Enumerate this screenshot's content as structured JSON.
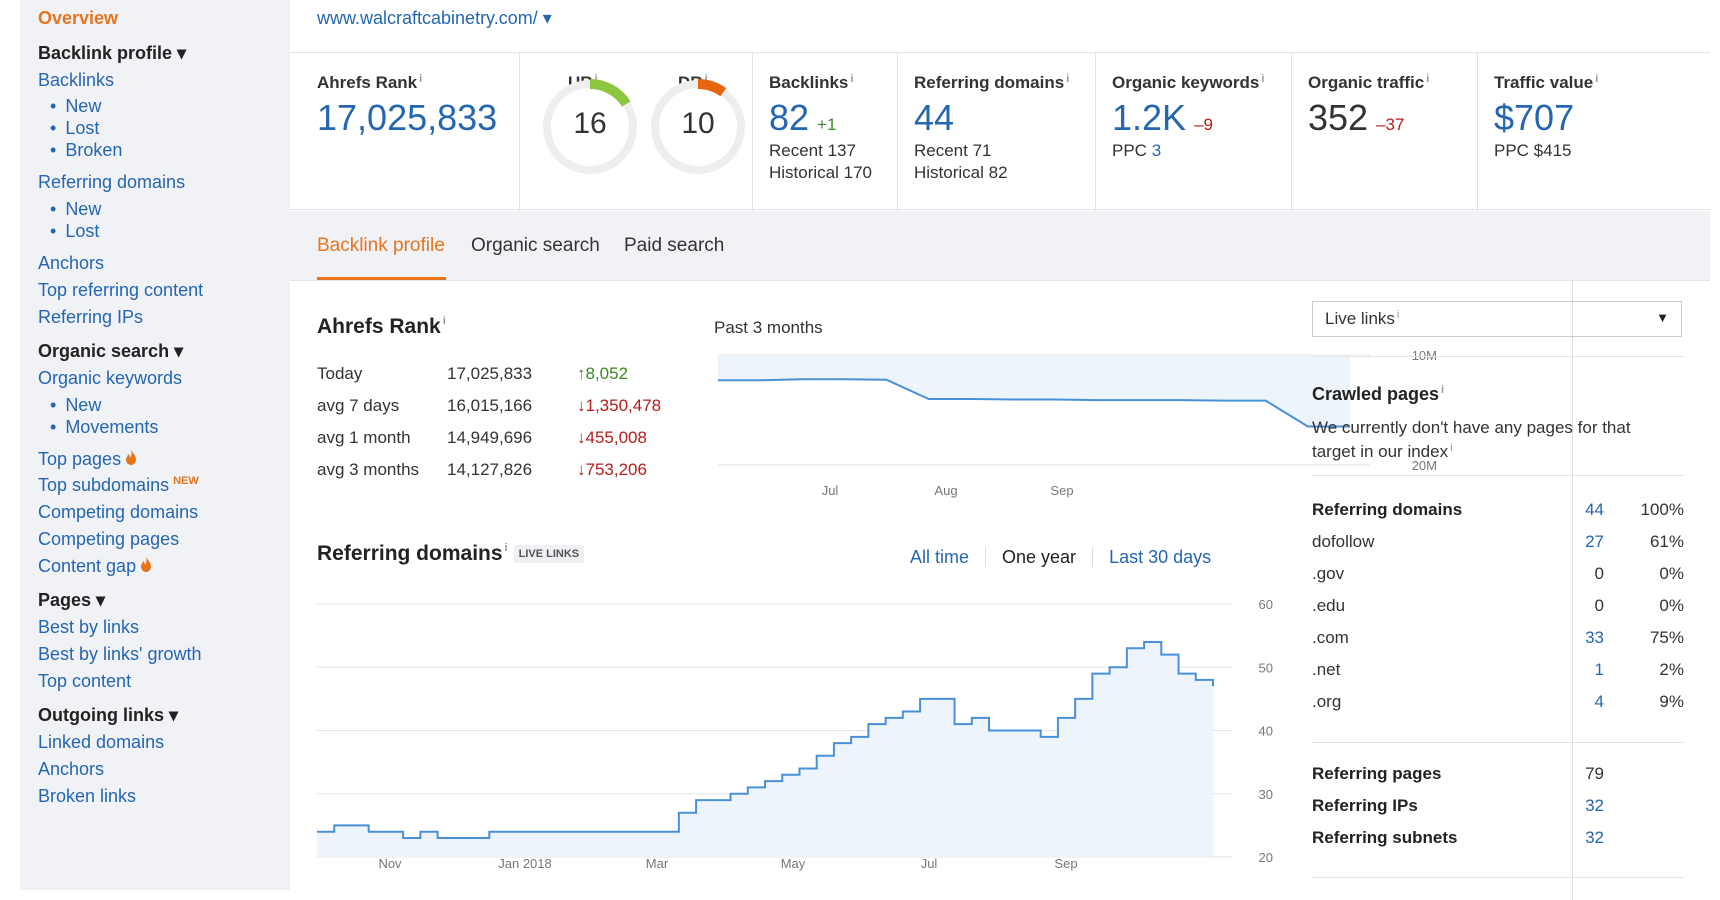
{
  "sidebar": {
    "overview": "Overview",
    "backlink_profile": "Backlink profile ▾",
    "backlinks": "Backlinks",
    "backlinks_new": "New",
    "backlinks_lost": "Lost",
    "backlinks_broken": "Broken",
    "referring_domains": "Referring domains",
    "rd_new": "New",
    "rd_lost": "Lost",
    "anchors": "Anchors",
    "top_referring_content": "Top referring content",
    "referring_ips": "Referring IPs",
    "organic_search": "Organic search ▾",
    "organic_keywords": "Organic keywords",
    "ok_new": "New",
    "ok_movements": "Movements",
    "top_pages": "Top pages",
    "top_subdomains": "Top subdomains",
    "new_badge": "NEW",
    "competing_domains": "Competing domains",
    "competing_pages": "Competing pages",
    "content_gap": "Content gap",
    "pages": "Pages ▾",
    "best_by_links": "Best by links",
    "best_by_links_growth": "Best by links' growth",
    "top_content": "Top content",
    "outgoing_links": "Outgoing links ▾",
    "linked_domains": "Linked domains",
    "anchors2": "Anchors",
    "broken_links": "Broken links"
  },
  "header": {
    "url": "www.walcraftcabinetry.com/ ▾"
  },
  "stats": {
    "ahrefs_rank_label": "Ahrefs Rank",
    "ahrefs_rank_value": "17,025,833",
    "ur_label": "UR",
    "ur_value": "16",
    "ur_fraction": 0.16,
    "dr_label": "DR",
    "dr_value": "10",
    "dr_fraction": 0.1,
    "backlinks_label": "Backlinks",
    "backlinks_value": "82",
    "backlinks_delta": "+1",
    "backlinks_recent": "Recent 137",
    "backlinks_historical": "Historical 170",
    "refdomains_label": "Referring domains",
    "refdomains_value": "44",
    "refdomains_recent": "Recent 71",
    "refdomains_historical": "Historical 82",
    "organic_keywords_label": "Organic keywords",
    "organic_keywords_value": "1.2K",
    "organic_keywords_delta": "–9",
    "ppc_label": "PPC",
    "ppc_value": "3",
    "organic_traffic_label": "Organic traffic",
    "organic_traffic_value": "352",
    "organic_traffic_delta": "–37",
    "traffic_value_label": "Traffic value",
    "traffic_value_value": "$707",
    "traffic_value_ppc": "PPC $415",
    "info": "i"
  },
  "tabs": [
    "Backlink profile",
    "Organic search",
    "Paid search"
  ],
  "ahrefs_rank_section": {
    "title": "Ahrefs Rank",
    "period": "Past 3 months",
    "rows": [
      {
        "label": "Today",
        "value": "17,025,833",
        "change": "↑8,052"
      },
      {
        "label": "avg 7 days",
        "value": "16,015,166",
        "change": "↓1,350,478"
      },
      {
        "label": "avg 1 month",
        "value": "14,949,696",
        "change": "↓455,008"
      },
      {
        "label": "avg 3 months",
        "value": "14,127,826",
        "change": "↓753,206"
      }
    ]
  },
  "referring_domains_section": {
    "title": "Referring domains",
    "badge": "LIVE LINKS",
    "ranges": [
      "All time",
      "One year",
      "Last 30 days"
    ]
  },
  "right_panel": {
    "dropdown": "Live links",
    "crawled_title": "Crawled pages",
    "crawled_text_1": "We currently don't have any pages for that",
    "crawled_text_2": "target in our index",
    "rows": [
      {
        "k": "Referring domains",
        "v": "44",
        "p": "100%"
      },
      {
        "k": "dofollow",
        "v": "27",
        "p": "61%"
      },
      {
        "k": ".gov",
        "v": "0",
        "p": "0%"
      },
      {
        "k": ".edu",
        "v": "0",
        "p": "0%"
      },
      {
        "k": ".com",
        "v": "33",
        "p": "75%"
      },
      {
        "k": ".net",
        "v": "1",
        "p": "2%"
      },
      {
        "k": ".org",
        "v": "4",
        "p": "9%"
      }
    ],
    "rows2": [
      {
        "k": "Referring pages",
        "v": "79"
      },
      {
        "k": "Referring IPs",
        "v": "32"
      },
      {
        "k": "Referring subnets",
        "v": "32"
      }
    ]
  },
  "chart_data": [
    {
      "type": "line",
      "title": "Ahrefs Rank",
      "subtitle": "Past 3 months",
      "x_ticks": [
        "Jul",
        "Aug",
        "Sep"
      ],
      "y_ticks": [
        "10M",
        "20M"
      ],
      "ylim": [
        10000000,
        20000000
      ],
      "inverted_y": true,
      "values": [
        12300000,
        12300000,
        12200000,
        12200000,
        12250000,
        14000000,
        14000000,
        14050000,
        14050000,
        14100000,
        14100000,
        14100000,
        14150000,
        14150000,
        16500000,
        16500000
      ]
    },
    {
      "type": "area",
      "title": "Referring domains",
      "x_ticks": [
        "Nov",
        "Jan 2018",
        "Mar",
        "May",
        "Jul",
        "Sep"
      ],
      "y_ticks": [
        "60",
        "50",
        "40",
        "30",
        "20"
      ],
      "ylim": [
        20,
        60
      ],
      "values": [
        24,
        25,
        25,
        24,
        24,
        23,
        24,
        23,
        23,
        23,
        24,
        24,
        24,
        24,
        24,
        24,
        24,
        24,
        24,
        24,
        24,
        27,
        29,
        29,
        30,
        31,
        32,
        33,
        34,
        36,
        38,
        39,
        41,
        42,
        43,
        45,
        45,
        41,
        42,
        40,
        40,
        40,
        39,
        42,
        45,
        49,
        50,
        53,
        54,
        52,
        49,
        48,
        47
      ]
    }
  ]
}
